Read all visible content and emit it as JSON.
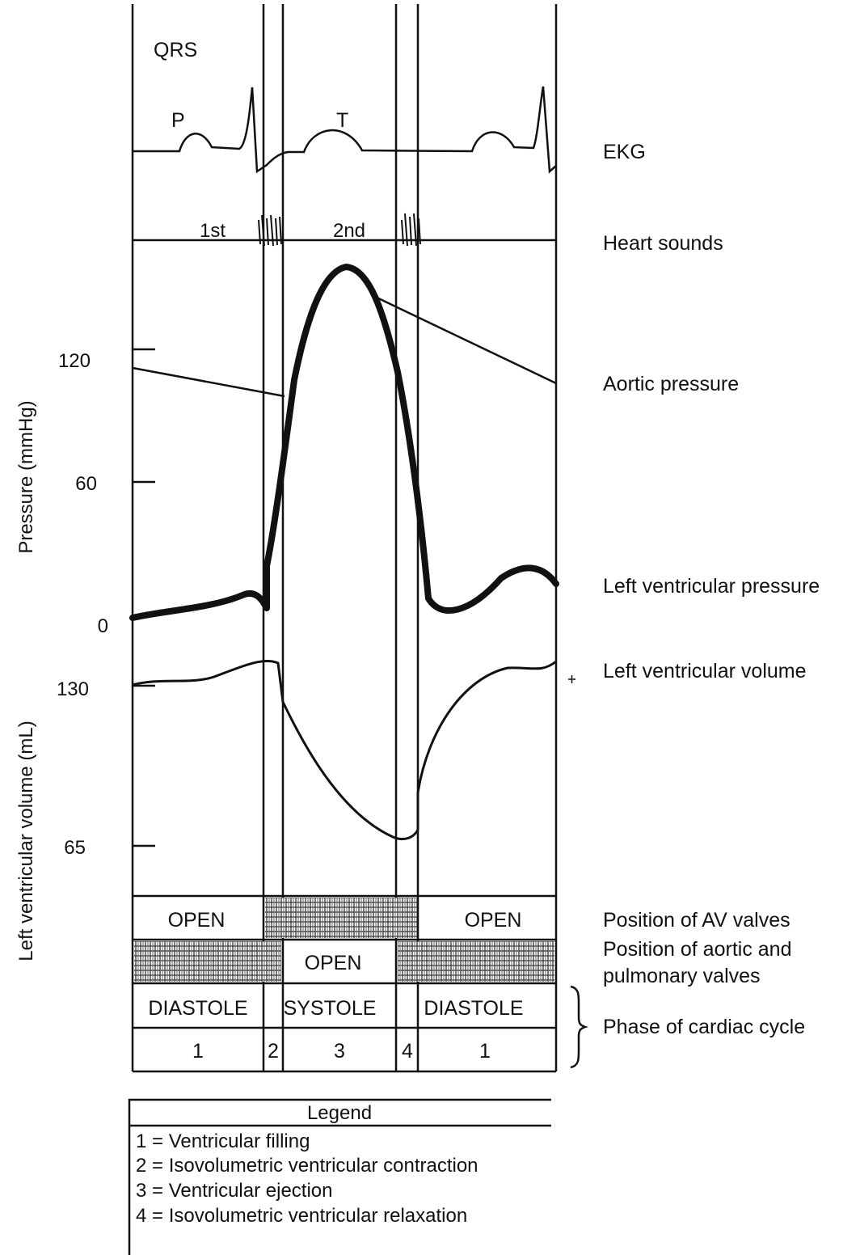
{
  "waveform_labels": {
    "qrs": "QRS",
    "p": "P",
    "t": "T",
    "first_sound": "1st",
    "second_sound": "2nd"
  },
  "axes": {
    "pressure_label": "Pressure (mmHg)",
    "pressure_ticks": [
      "120",
      "60",
      "0"
    ],
    "volume_label": "Left ventricular volume (mL)",
    "volume_ticks": [
      "130",
      "65"
    ]
  },
  "trace_labels": {
    "ekg": "EKG",
    "heart_sounds": "Heart sounds",
    "aortic_pressure": "Aortic pressure",
    "lv_pressure": "Left ventricular pressure",
    "lv_volume": "Left ventricular volume"
  },
  "rows": {
    "av_valves": {
      "label": "Position of AV valves",
      "left": "OPEN",
      "right": "OPEN"
    },
    "aortic_valves": {
      "label_line1": "Position of aortic and",
      "label_line2": "pulmonary valves",
      "middle": "OPEN"
    },
    "phase": {
      "label": "Phase of cardiac cycle",
      "diastole_left": "DIASTOLE",
      "systole": "SYSTOLE",
      "diastole_right": "DIASTOLE"
    },
    "numbers": [
      "1",
      "2",
      "3",
      "4",
      "1"
    ]
  },
  "legend": {
    "title": "Legend",
    "items": [
      "1 = Ventricular filling",
      "2 = Isovolumetric ventricular contraction",
      "3 = Ventricular ejection",
      "4 = Isovolumetric ventricular relaxation"
    ]
  },
  "colors": {
    "ink": "#111111",
    "hatch": "#555555"
  }
}
